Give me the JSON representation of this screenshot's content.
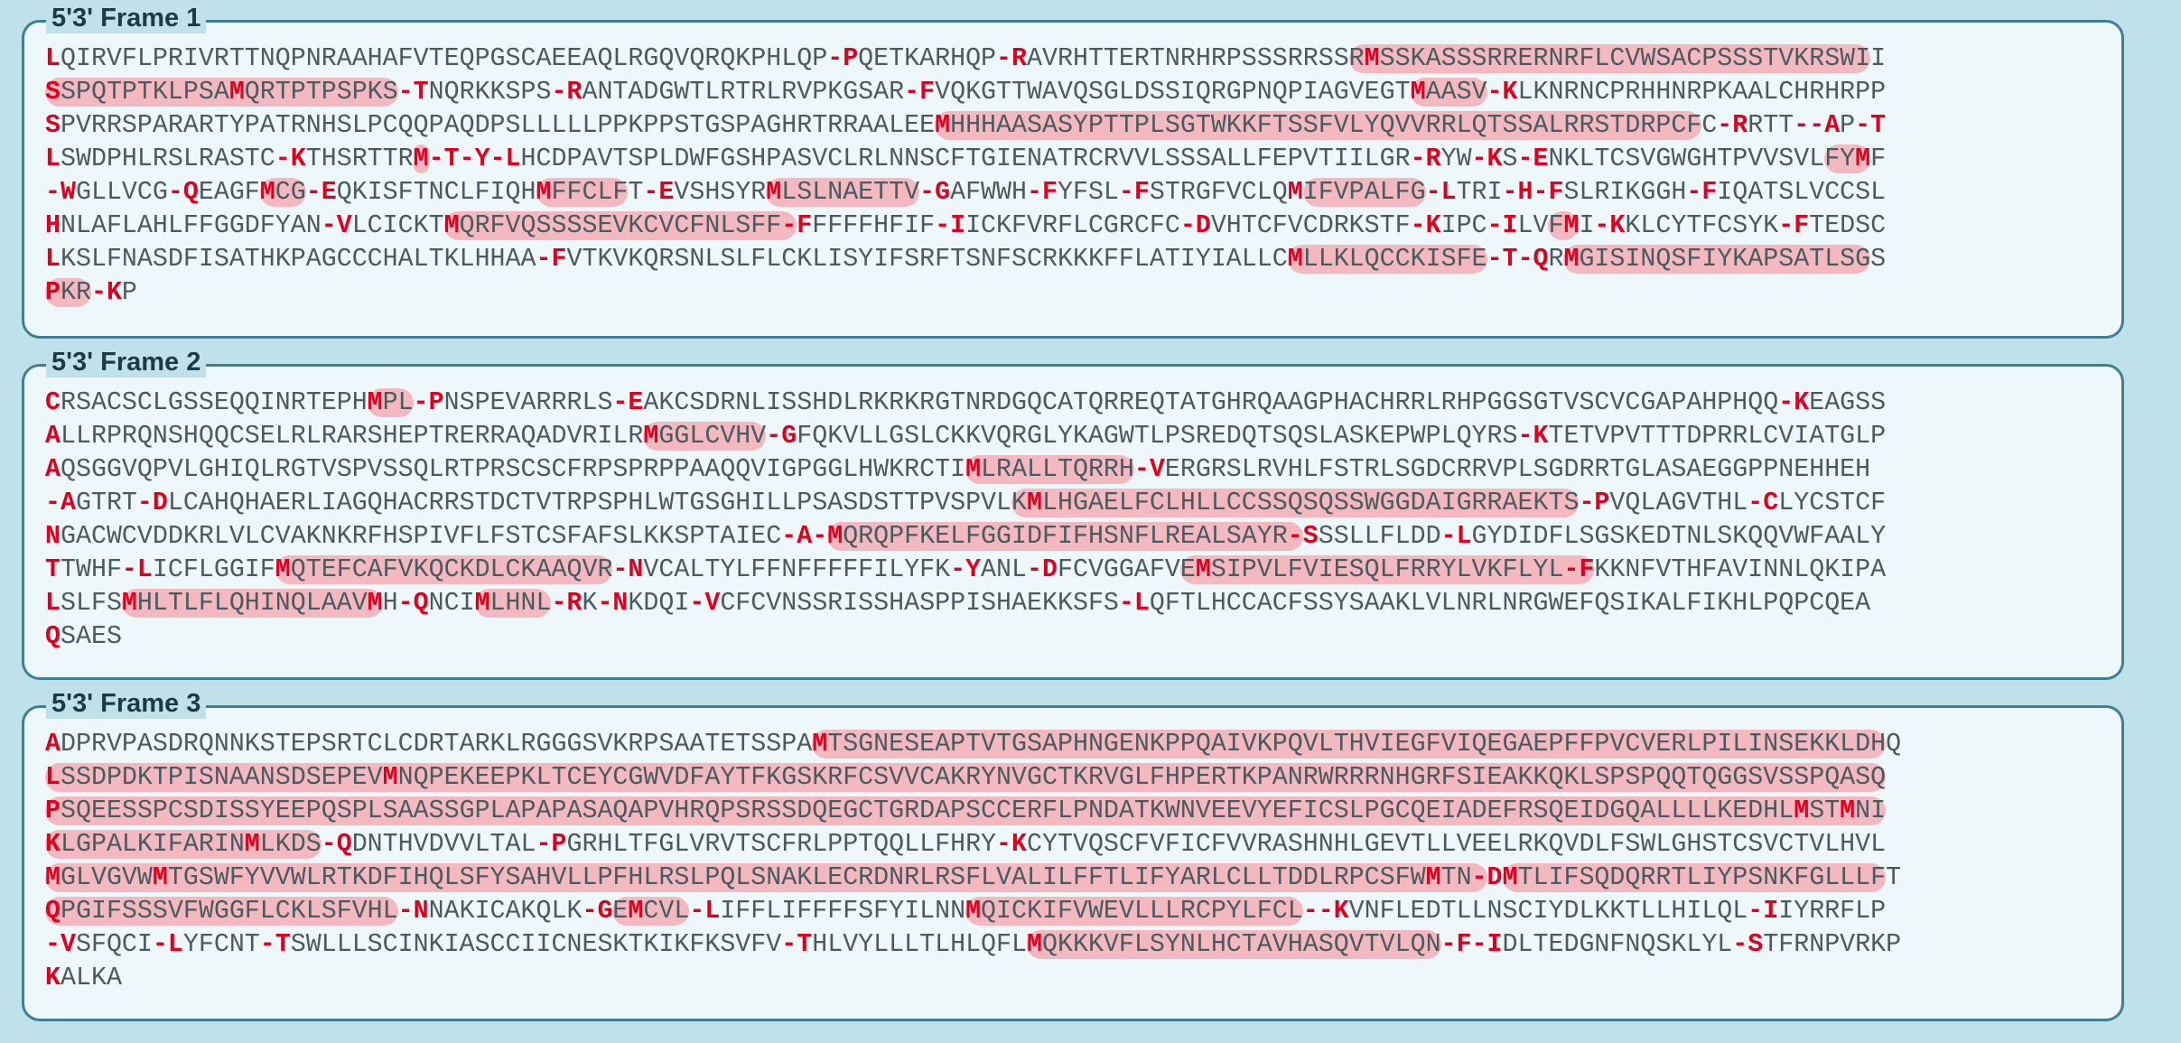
{
  "frames": [
    {
      "title": "5'3' Frame 1",
      "lines": [
        "LQIRVFLPRIVRTTNQPNRAAHAFVTEQPGSCAEEAQLRGQVQRQKPHLQP-PQETKARHQP-RAVRHTTERTNRHRPSSSRRSSRMSSKASSSRRERNRFLCVWSACPSSSTVKRSWII",
        "SSPQTPTKLPSAMQRTPTPSPKS-TNQRKKSPS-RANTADGWTLRTRLRVPKGSAR-FVQKGTTWAVQSGLDSSIQRGPNQPIAGVEGTMAASV-KLKNRNCPRHHNRPKAALCHRHRPP",
        "SPVRRSPARARTYPATRNHSLPCQQPAQDPSLLLLLPPKPPSTGSPAGHRTRRAALEEMHHHAASASYPTTPLSGTWKKFTSSFVLYQVVRRLQTSSALRRSTDRPCFC-RRTT--AP-T",
        "LSWDPHLRSLRASTC-KTHSRTTRM-T-Y-LHCDPAVTSPLDWFGSHPASVCLRLNNSCFTGIENATRCRVVLSSSALLFEPVTIILGR-RYW-KS-ENKLTCSVGWGHTPVVSVLFYMF",
        "-WGLLVCG-QEAGFMCG-EQKISFTNCLFIQHMFFCLFT-EVSHSYRMLSLNAETTV-GAFWWH-FYFSL-FSTRGFVCLQMIFVPALFG-LTRI-H-FSLRIKGGH-FIQATSLVCCSL",
        "HNLAFLAHLFFGGDFYAN-VLCICKTMQRFVQSSSSEVKCVCFNLSFF-FFFFFHFIF-IICKFVRFLCGRCFC-DVHTCFVCDRKSTF-KIPC-ILVFMI-KKLCYTFCSYK-FTEDSC",
        "LKSLFNASDFISATHKPAGCCCHALTKLHHAA-FVTKVKQRSNLSLFLCKLISYIFSRFTSNFSCRKKKFFLATIYIALLCMLLKLQCCKISFE-T-QRMGISINQSFIYKAPSATLSGS",
        "PKR-KP"
      ],
      "highlights": [
        [
          0,
          85,
          119
        ],
        [
          1,
          0,
          23
        ],
        [
          1,
          12,
          23
        ],
        [
          1,
          89,
          94
        ],
        [
          2,
          58,
          108
        ],
        [
          3,
          24,
          25
        ],
        [
          3,
          116,
          119
        ],
        [
          4,
          14,
          17
        ],
        [
          4,
          32,
          38
        ],
        [
          4,
          47,
          57
        ],
        [
          4,
          82,
          90
        ],
        [
          5,
          26,
          49
        ],
        [
          5,
          98,
          100
        ],
        [
          6,
          81,
          94
        ],
        [
          6,
          99,
          119
        ],
        [
          7,
          0,
          3
        ]
      ]
    },
    {
      "title": "5'3' Frame 2",
      "lines": [
        "CRSACSCLGSSEQQINRTEPHMPL-PNSPEVARRRLS-EAKCSDRNLISSHDLRKRKRGTNRDGQCATQRREQTATGHRQAAGPHACHRRLRHPGGSGTVSCVCGAPAHPHQQ-KEAGSS",
        "ALLRPRQNSHQQCSELRLRARSHEPTRERRAQADVRILRMGGLCVHV-GFQKVLLGSLCKKVQRGLYKAGWTLPSREDQTSQSLASKEPWPLQYRS-KTETVPVTTTDPRRLCVIATGLP",
        "AQSGGVQPVLGHIQLRGTVSPVSSQLRTPRSCSCFRPSPRPPAAQQVIGPGGLHWKRCTIMLRALLTQRRH-VERGRSLRVHLFSTRLSGDCRRVPLSGDRRTGLASAEGGPPNEHHEH",
        "-AGTRT-DLCAHQHAERLIAGQHACRRSTDCTVTRPSPHLWTGSGHILLPSASDSTTPVSPVLKMLHGAELFCLHLLCCSSQSQSSWGGDAIGRRAEKTS-PVQLAGVTHL-CLYCSTCF",
        "NGACWCVDDKRLVLCVAKNKRFHSPIVFLFSTCSFAFSLKKSPTAIEC-A-MQRQPFKELFGGIDFIFHSNFLREALSAYR-SSSLLFLDD-LGYDIDFLSGSKEDTNLSKQQVWFAALY",
        "TTWHF-LICFLGGIFMQTEFCAFVKQCKDLCKAAQVR-NVCALTYLFFNFFFFFILYFK-YANL-DFCVGGAFVEMSIPVLFVIESQLFRRYLVKFLYL-FKKNFVTHFAVINNLQKIPA",
        "LSLFSMHLTLFLQHINQLAAVMH-QNCIMLHNL-RK-NKDQI-VCFCVNSSRISSHASPPISHAEKKSFS-LQFTLHCCACFSSYSAAKLVLNRLNRGWEFQSIKALFIKHLPQPCQEA",
        "QSAES"
      ],
      "highlights": [
        [
          0,
          21,
          24
        ],
        [
          1,
          39,
          47
        ],
        [
          2,
          60,
          71
        ],
        [
          3,
          63,
          100
        ],
        [
          4,
          51,
          82
        ],
        [
          5,
          15,
          37
        ],
        [
          5,
          74,
          101
        ],
        [
          6,
          5,
          22
        ],
        [
          6,
          28,
          33
        ]
      ]
    },
    {
      "title": "5'3' Frame 3",
      "lines": [
        "ADPRVPASDRQNNKSTEPSRTCLCDRTARKLRGGGSVKRPSAATETSSPAMTSGNESEAPTVTGSAPHNGENKPPQAIVKPQVLTHVIEGFVIQEGAEPFFPVCVERLPILINSEKKLDHQ",
        "LSSDPDKTPISNAANSDSEPEVMNQPEKEEPKLTCEYCGWVDFAYTFKGSKRFCSVVCAKRYNVGCTKRVGLFHPERTKPANRWRRRNHGRFSIEAKKQKLSPSPQQTQGGSVSSPQASQ",
        "PSQEESSPCSDISSYEEPQSPLSAASSGPLAPAPASAQAPVHRQPSRSSDQEGCTGRDAPSCCERFLPNDATKWNVEEVYEFICSLPGCQEIADEFRSQEIDGQALLLLKEDHLMSTMNI",
        "KLGPALKIFARINMLKDS-QDNTHVDVVLTAL-PGRHLTFGLVRVTSCFRLPPTQQLLFHRY-KCYTVQSCFVFICFVVRASHNHLGEVTLLVEELRKQVDLFSWLGHSTCSVCTVLHVL",
        "MGLVGVWMTGSWFYVVWLRTKDFIHQLSFYSAHVLLPFHLRSLPQLSNAKLECRDNRLRSFLVALILFFTLIFYARLCLLTDDLRPCSFWMTN-DMTLIFSQDQRRTLIYPSNKFGLLLFT",
        "QPGIFSSSVFWGGFLCKLSFVHL-NNAKICAKQLK-GEMCVL-LIFFLIFFFFSFYILNNMQICKIFVWEVLLLRCPYLFCL--KVNFLEDTLLNSCIYDLKKTLLHILQL-IIYRRFLP",
        "-VSFQCI-LYFCNT-TSWLLLSCINKIASCCIICNESKTKIKFKSVFV-THLVYLLLTLHLQFLMQKKKVFLSYNLHCTAVHASQVTVLQN-F-IDLTEDGNFNQSKLYL-STFRNPVRKP",
        "KALKA"
      ],
      "highlights": [
        [
          0,
          50,
          120
        ],
        [
          1,
          0,
          120
        ],
        [
          2,
          0,
          120
        ],
        [
          3,
          0,
          18
        ],
        [
          4,
          0,
          94
        ],
        [
          4,
          95,
          120
        ],
        [
          5,
          0,
          23
        ],
        [
          5,
          37,
          42
        ],
        [
          5,
          60,
          82
        ],
        [
          6,
          64,
          91
        ]
      ]
    }
  ]
}
